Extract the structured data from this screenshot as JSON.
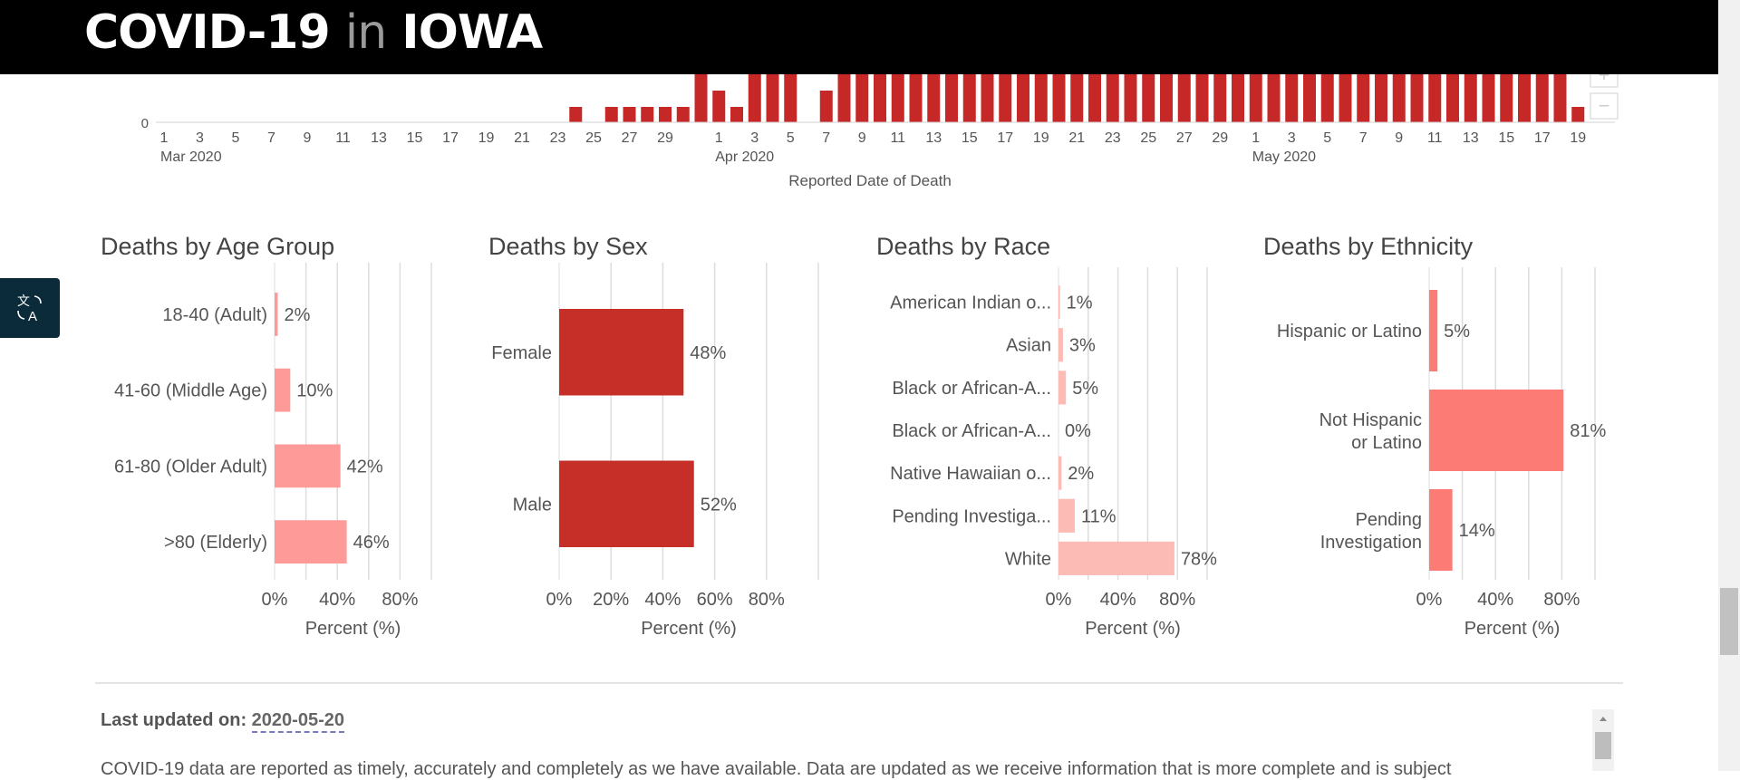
{
  "header": {
    "title_part1": "COVID-19",
    "title_part2": "in",
    "title_part3": "IOWA"
  },
  "timeline": {
    "xlabel": "Reported Date of Death",
    "zero_label": "0",
    "ticks": [
      {
        "label": "1",
        "day": 0
      },
      {
        "label": "3",
        "day": 2
      },
      {
        "label": "5",
        "day": 4
      },
      {
        "label": "7",
        "day": 6
      },
      {
        "label": "9",
        "day": 8
      },
      {
        "label": "11",
        "day": 10
      },
      {
        "label": "13",
        "day": 12
      },
      {
        "label": "15",
        "day": 14
      },
      {
        "label": "17",
        "day": 16
      },
      {
        "label": "19",
        "day": 18
      },
      {
        "label": "21",
        "day": 20
      },
      {
        "label": "23",
        "day": 22
      },
      {
        "label": "25",
        "day": 24
      },
      {
        "label": "27",
        "day": 26
      },
      {
        "label": "29",
        "day": 28
      },
      {
        "label": "1",
        "day": 31
      },
      {
        "label": "3",
        "day": 33
      },
      {
        "label": "5",
        "day": 35
      },
      {
        "label": "7",
        "day": 37
      },
      {
        "label": "9",
        "day": 39
      },
      {
        "label": "11",
        "day": 41
      },
      {
        "label": "13",
        "day": 43
      },
      {
        "label": "15",
        "day": 45
      },
      {
        "label": "17",
        "day": 47
      },
      {
        "label": "19",
        "day": 49
      },
      {
        "label": "21",
        "day": 51
      },
      {
        "label": "23",
        "day": 53
      },
      {
        "label": "25",
        "day": 55
      },
      {
        "label": "27",
        "day": 57
      },
      {
        "label": "29",
        "day": 59
      },
      {
        "label": "1",
        "day": 61
      },
      {
        "label": "3",
        "day": 63
      },
      {
        "label": "5",
        "day": 65
      },
      {
        "label": "7",
        "day": 67
      },
      {
        "label": "9",
        "day": 69
      },
      {
        "label": "11",
        "day": 71
      },
      {
        "label": "13",
        "day": 73
      },
      {
        "label": "15",
        "day": 75
      },
      {
        "label": "17",
        "day": 77
      },
      {
        "label": "19",
        "day": 79
      }
    ],
    "months": [
      {
        "label": "Mar 2020",
        "day": 0
      },
      {
        "label": "Apr 2020",
        "day": 31
      },
      {
        "label": "May 2020",
        "day": 61
      }
    ],
    "bars": [
      {
        "day": 23,
        "level": "low"
      },
      {
        "day": 25,
        "level": "low"
      },
      {
        "day": 26,
        "level": "low"
      },
      {
        "day": 27,
        "level": "low"
      },
      {
        "day": 28,
        "level": "low"
      },
      {
        "day": 29,
        "level": "low"
      },
      {
        "day": 30,
        "level": "clip"
      },
      {
        "day": 31,
        "level": "mid"
      },
      {
        "day": 32,
        "level": "low"
      },
      {
        "day": 33,
        "level": "clip"
      },
      {
        "day": 34,
        "level": "clip"
      },
      {
        "day": 35,
        "level": "clip"
      },
      {
        "day": 37,
        "level": "mid"
      },
      {
        "day": 38,
        "level": "clip"
      },
      {
        "day": 39,
        "level": "clip"
      },
      {
        "day": 40,
        "level": "clip"
      },
      {
        "day": 41,
        "level": "clip"
      },
      {
        "day": 42,
        "level": "clip"
      },
      {
        "day": 43,
        "level": "clip"
      },
      {
        "day": 44,
        "level": "clip"
      },
      {
        "day": 45,
        "level": "clip"
      },
      {
        "day": 46,
        "level": "clip"
      },
      {
        "day": 47,
        "level": "clip"
      },
      {
        "day": 48,
        "level": "clip"
      },
      {
        "day": 49,
        "level": "clip"
      },
      {
        "day": 50,
        "level": "clip"
      },
      {
        "day": 51,
        "level": "clip"
      },
      {
        "day": 52,
        "level": "clip"
      },
      {
        "day": 53,
        "level": "clip"
      },
      {
        "day": 54,
        "level": "clip"
      },
      {
        "day": 55,
        "level": "clip"
      },
      {
        "day": 56,
        "level": "clip"
      },
      {
        "day": 57,
        "level": "clip"
      },
      {
        "day": 58,
        "level": "clip"
      },
      {
        "day": 59,
        "level": "clip"
      },
      {
        "day": 60,
        "level": "clip"
      },
      {
        "day": 61,
        "level": "clip"
      },
      {
        "day": 62,
        "level": "clip"
      },
      {
        "day": 63,
        "level": "clip"
      },
      {
        "day": 64,
        "level": "clip"
      },
      {
        "day": 65,
        "level": "clip"
      },
      {
        "day": 66,
        "level": "clip"
      },
      {
        "day": 67,
        "level": "clip"
      },
      {
        "day": 68,
        "level": "clip"
      },
      {
        "day": 69,
        "level": "clip"
      },
      {
        "day": 70,
        "level": "clip"
      },
      {
        "day": 71,
        "level": "clip"
      },
      {
        "day": 72,
        "level": "clip"
      },
      {
        "day": 73,
        "level": "clip"
      },
      {
        "day": 74,
        "level": "clip"
      },
      {
        "day": 75,
        "level": "clip"
      },
      {
        "day": 76,
        "level": "clip"
      },
      {
        "day": 77,
        "level": "clip"
      },
      {
        "day": 78,
        "level": "clip"
      },
      {
        "day": 79,
        "level": "low"
      }
    ],
    "bar_color": "#c62828",
    "zoom_in_label": "+",
    "zoom_out_label": "−"
  },
  "chart_data": [
    {
      "type": "bar",
      "title": "Deaths by Age Group",
      "xlabel": "Percent (%)",
      "color": "#fe9a98",
      "categories": [
        "18-40 (Adult)",
        "41-60 (Middle Age)",
        "61-80 (Older Adult)",
        ">80 (Elderly)"
      ],
      "values": [
        2,
        10,
        42,
        46
      ],
      "value_labels": [
        "2%",
        "10%",
        "42%",
        "46%"
      ],
      "xticks": [
        "0%",
        "40%",
        "80%"
      ],
      "xlim": [
        0,
        100
      ]
    },
    {
      "type": "bar",
      "title": "Deaths by Sex",
      "xlabel": "Percent (%)",
      "color": "#c62f28",
      "categories": [
        "Female",
        "Male"
      ],
      "values": [
        48,
        52
      ],
      "value_labels": [
        "48%",
        "52%"
      ],
      "xticks": [
        "0%",
        "20%",
        "40%",
        "60%",
        "80%"
      ],
      "xlim": [
        0,
        100
      ]
    },
    {
      "type": "bar",
      "title": "Deaths by Race",
      "xlabel": "Percent (%)",
      "color": "#fdbbb6",
      "categories": [
        "American Indian o...",
        "Asian",
        "Black or African-A...",
        "Black or African-A...",
        "Native Hawaiian o...",
        "Pending Investiga...",
        "White"
      ],
      "values": [
        1,
        3,
        5,
        0,
        2,
        11,
        78
      ],
      "value_labels": [
        "1%",
        "3%",
        "5%",
        "0%",
        "2%",
        "11%",
        "78%"
      ],
      "xticks": [
        "0%",
        "40%",
        "80%"
      ],
      "xlim": [
        0,
        100
      ]
    },
    {
      "type": "bar",
      "title": "Deaths by Ethnicity",
      "xlabel": "Percent (%)",
      "color": "#fc7b75",
      "categories": [
        "Hispanic or Latino",
        "Not Hispanic or Latino",
        "Pending Investigation"
      ],
      "values": [
        5,
        81,
        14
      ],
      "value_labels": [
        "5%",
        "81%",
        "14%"
      ],
      "xticks": [
        "0%",
        "40%",
        "80%"
      ],
      "xlim": [
        0,
        100
      ]
    }
  ],
  "footer": {
    "last_updated_label": "Last updated on:",
    "last_updated_date": "2020-05-20",
    "disclaimer": "COVID-19 data are reported as timely, accurately and completely as we have available. Data are updated as we receive information that is more complete and is subject"
  },
  "icons": {
    "translate": "translate-icon"
  }
}
